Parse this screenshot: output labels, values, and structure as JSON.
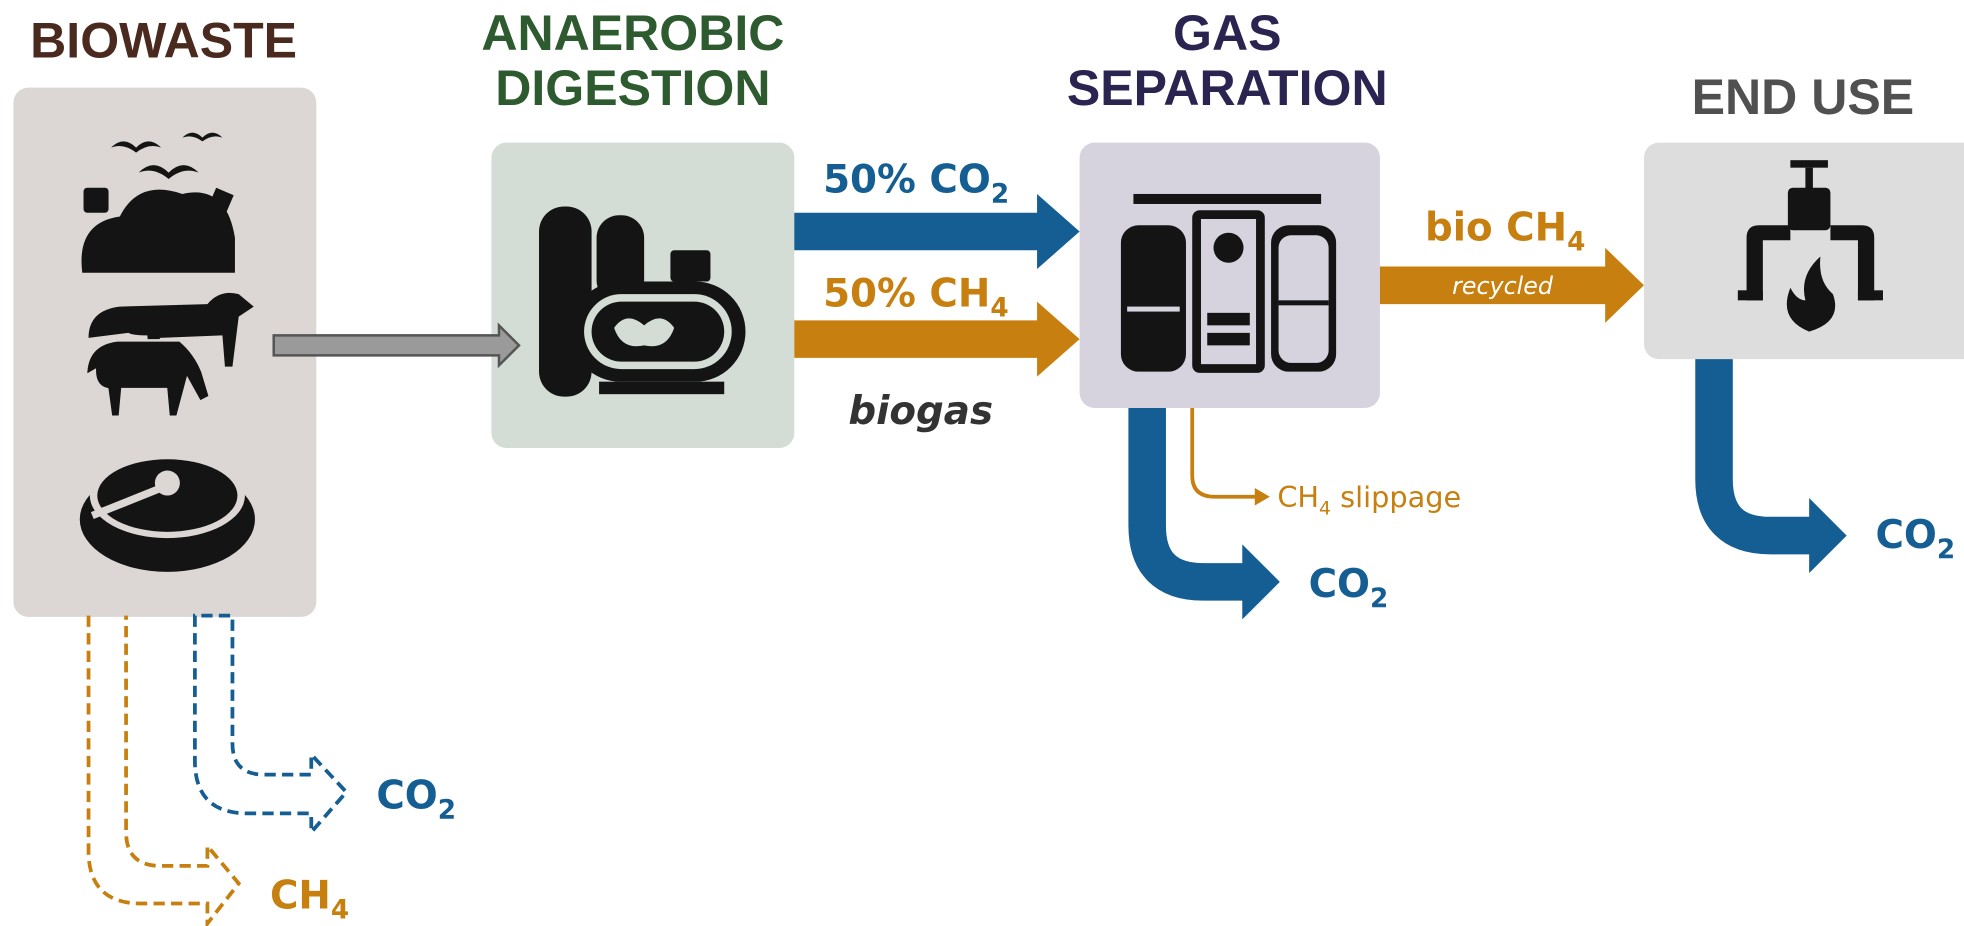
{
  "stages": [
    {
      "title_lines": [
        "BIOWASTE"
      ]
    },
    {
      "title_lines": [
        "ANAEROBIC",
        "DIGESTION"
      ]
    },
    {
      "title_lines": [
        "GAS",
        "SEPARATION"
      ]
    },
    {
      "title_lines": [
        "END USE"
      ]
    }
  ],
  "flows": {
    "biogas_co2": {
      "main": "50% CO",
      "sub": "2"
    },
    "biogas_ch4": {
      "main": "50% CH",
      "sub": "4"
    },
    "biogas_label": "biogas",
    "bio_ch4": {
      "main": "bio CH",
      "sub": "4"
    },
    "recycled": "recycled",
    "slippage": {
      "main": "CH",
      "sub": "4",
      "rest": " slippage"
    },
    "separation_co2": {
      "main": "CO",
      "sub": "2"
    },
    "end_use_co2": {
      "main": "CO",
      "sub": "2"
    },
    "biowaste_co2": {
      "main": "CO",
      "sub": "2"
    },
    "biowaste_ch4": {
      "main": "CH",
      "sub": "4"
    }
  }
}
